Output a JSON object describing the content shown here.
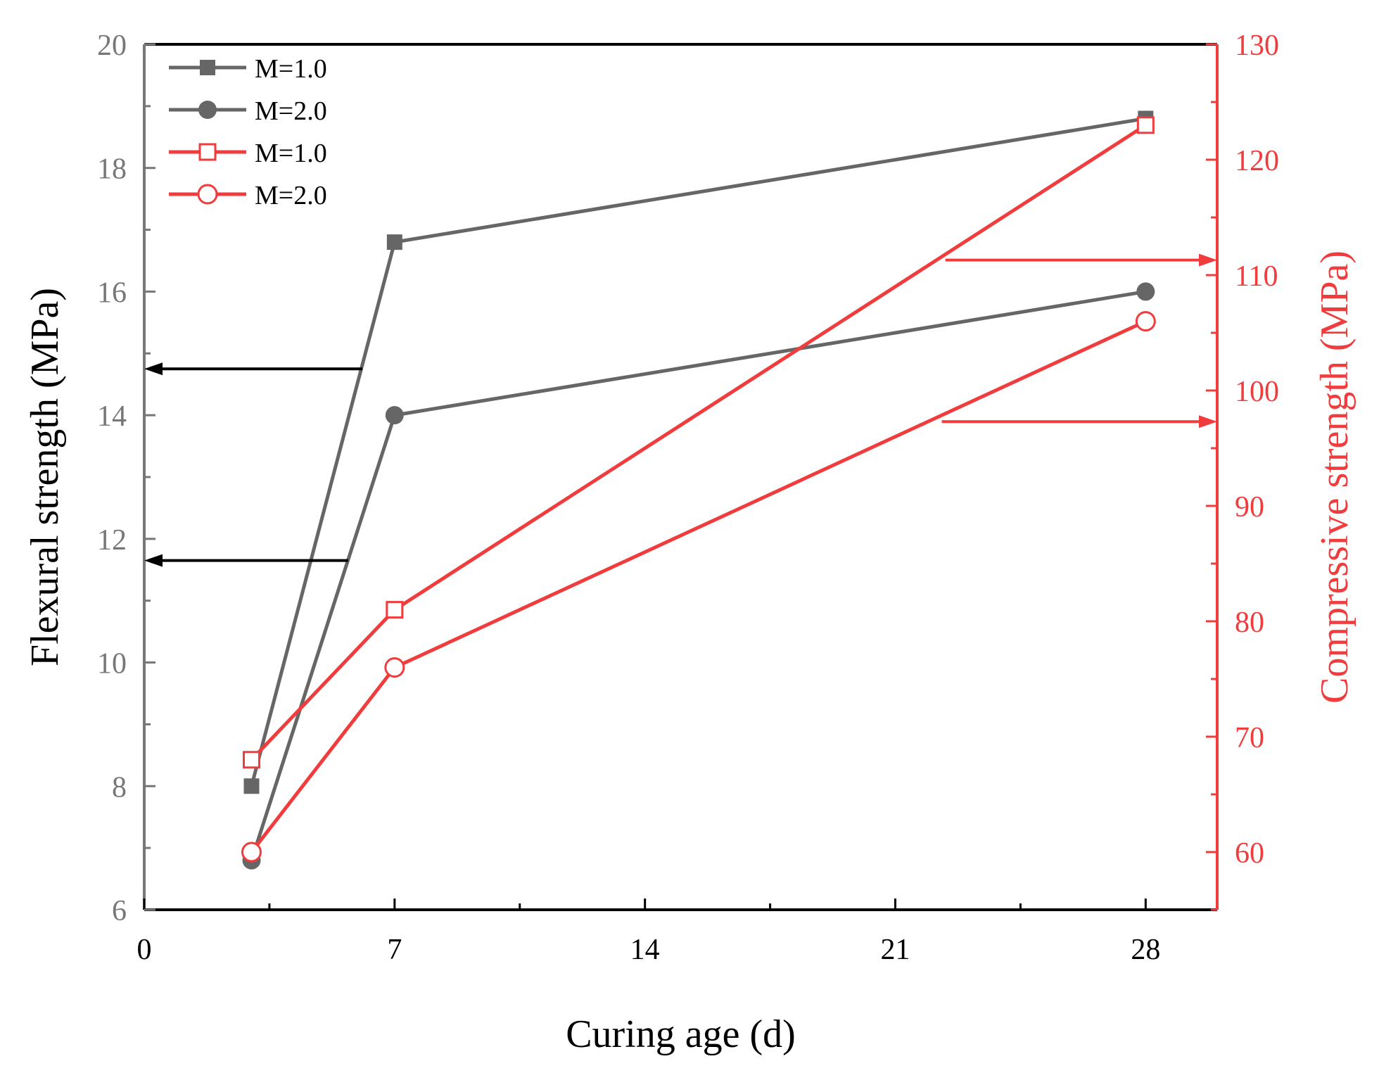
{
  "chart_data": {
    "type": "line",
    "xlabel": "Curing age (d)",
    "ylabel_left": "Flexural strength (MPa)",
    "ylabel_right": "Compressive strength (MPa)",
    "xlim": [
      0,
      30
    ],
    "ylim_left": [
      6,
      20
    ],
    "ylim_right": [
      55,
      130
    ],
    "x_ticks": [
      0,
      7,
      14,
      21,
      28
    ],
    "y_left_ticks": [
      6,
      8,
      10,
      12,
      14,
      16,
      18,
      20
    ],
    "y_right_ticks": [
      60,
      70,
      80,
      90,
      100,
      110,
      120,
      130
    ],
    "x_tick_labels": [
      "0",
      "7",
      "14",
      "21",
      "28"
    ],
    "y_left_tick_labels": [
      "6",
      "8",
      "10",
      "12",
      "14",
      "16",
      "18",
      "20"
    ],
    "y_right_tick_labels": [
      "60",
      "70",
      "80",
      "90",
      "100",
      "110",
      "120",
      "130"
    ],
    "colors": {
      "gray": "#666666",
      "red": "#f03c3c",
      "axis_left": "#777777",
      "axis_right": "#f03c3c",
      "black": "#000000"
    },
    "legend_position": "top-left",
    "series": [
      {
        "name": "M=1.0",
        "axis": "left",
        "marker": "square-filled",
        "color": "#666666",
        "x": [
          3,
          7,
          28
        ],
        "y": [
          8.0,
          16.8,
          18.8
        ]
      },
      {
        "name": "M=2.0",
        "axis": "left",
        "marker": "circle-filled",
        "color": "#666666",
        "x": [
          3,
          7,
          28
        ],
        "y": [
          6.8,
          14.0,
          16.0
        ]
      },
      {
        "name": "M=1.0",
        "axis": "right",
        "marker": "square-open",
        "color": "#f03c3c",
        "x": [
          3,
          7,
          28
        ],
        "y": [
          68,
          81,
          123
        ]
      },
      {
        "name": "M=2.0",
        "axis": "right",
        "marker": "circle-open",
        "color": "#f03c3c",
        "x": [
          3,
          7,
          28
        ],
        "y": [
          60,
          76,
          106
        ]
      }
    ],
    "annotations": [
      {
        "kind": "arrow",
        "direction": "left",
        "color": "#000000",
        "from": {
          "x": 6.1,
          "y_left": 14.75
        },
        "to": {
          "x": 0,
          "y_left": 14.75
        }
      },
      {
        "kind": "arrow",
        "direction": "left",
        "color": "#000000",
        "from": {
          "x": 5.7,
          "y_left": 11.65
        },
        "to": {
          "x": 0,
          "y_left": 11.65
        }
      },
      {
        "kind": "arrow",
        "direction": "right",
        "color": "#f03c3c",
        "from": {
          "x": 22.4,
          "y_right": 111.3
        },
        "to": {
          "x": 30,
          "y_right": 111.3
        }
      },
      {
        "kind": "arrow",
        "direction": "right",
        "color": "#f03c3c",
        "from": {
          "x": 22.3,
          "y_right": 97.3
        },
        "to": {
          "x": 30,
          "y_right": 97.3
        }
      }
    ]
  }
}
